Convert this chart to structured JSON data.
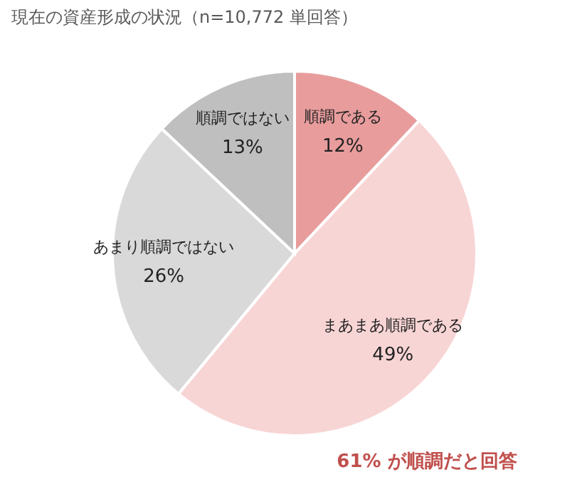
{
  "chart_data": {
    "type": "pie",
    "title": "現在の資産形成の状況（n=10,772 単回答）",
    "categories": [
      "順調である",
      "まあまあ順調である",
      "あまり順調ではない",
      "順調ではない"
    ],
    "values": [
      12,
      49,
      26,
      13
    ],
    "value_labels": [
      "12%",
      "49%",
      "26%",
      "13%"
    ],
    "colors": [
      "#e89c9c",
      "#f8d5d5",
      "#d9d9d9",
      "#bfbfbf"
    ],
    "annotations": [
      "61% が順調だと回答"
    ]
  }
}
